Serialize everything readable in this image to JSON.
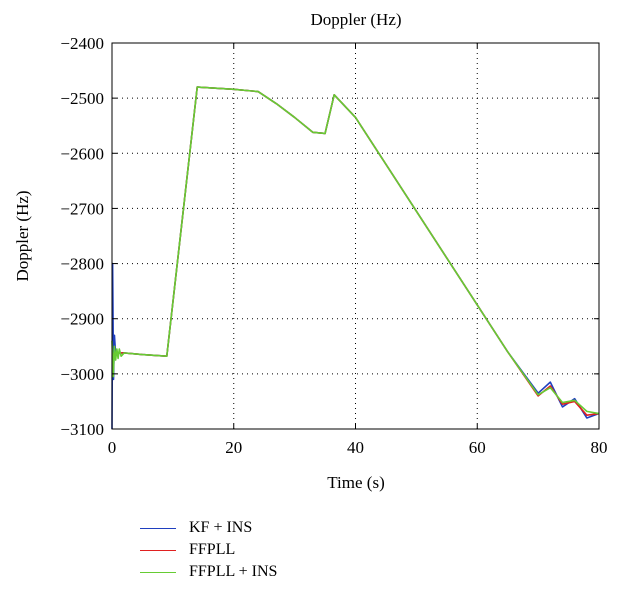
{
  "chart_data": {
    "type": "line",
    "title": "Doppler (Hz)",
    "xlabel": "Time (s)",
    "ylabel": "Doppler (Hz)",
    "xlim": [
      0,
      80
    ],
    "ylim": [
      -3100,
      -2400
    ],
    "xticks": [
      0,
      20,
      40,
      60,
      80
    ],
    "yticks": [
      -2400,
      -2500,
      -2600,
      -2700,
      -2800,
      -2900,
      -3000,
      -3100
    ],
    "xtick_labels": [
      "0",
      "20",
      "40",
      "60",
      "80"
    ],
    "ytick_labels": [
      "−2400",
      "−2500",
      "−2600",
      "−2700",
      "−2800",
      "−2900",
      "−3000",
      "−3100"
    ],
    "grid": true,
    "legend_position": "bottom",
    "series": [
      {
        "name": "KF + INS",
        "color": "#1f3fbf",
        "x": [
          0,
          0.1,
          0.25,
          0.4,
          0.6,
          1,
          2,
          5,
          9,
          14,
          20,
          24,
          27,
          30,
          33,
          35,
          36.5,
          40,
          45,
          50,
          55,
          60,
          65,
          70,
          72,
          74,
          76,
          78,
          80
        ],
        "y": [
          -3100,
          -2800,
          -3010,
          -2930,
          -2965,
          -2962,
          -2962,
          -2965,
          -2968,
          -2480,
          -2484,
          -2488,
          -2510,
          -2535,
          -2562,
          -2564,
          -2494,
          -2535,
          -2620,
          -2705,
          -2790,
          -2875,
          -2960,
          -3035,
          -3015,
          -3060,
          -3045,
          -3080,
          -3072
        ]
      },
      {
        "name": "FFPLL",
        "color": "#e02020",
        "x": [
          0,
          0.5,
          1,
          2,
          5,
          9,
          14,
          20,
          24,
          27,
          30,
          33,
          35,
          36.5,
          40,
          45,
          50,
          55,
          60,
          65,
          70,
          72,
          74,
          76,
          78,
          80
        ],
        "y": [
          -2965,
          -2962,
          -2962,
          -2962,
          -2965,
          -2968,
          -2480,
          -2484,
          -2488,
          -2510,
          -2535,
          -2562,
          -2564,
          -2494,
          -2535,
          -2620,
          -2705,
          -2790,
          -2875,
          -2960,
          -3040,
          -3022,
          -3055,
          -3050,
          -3075,
          -3072
        ]
      },
      {
        "name": "FFPLL + INS",
        "color": "#66cc33",
        "x": [
          0,
          0.2,
          0.4,
          0.6,
          0.8,
          1,
          1.2,
          1.5,
          2,
          5,
          9,
          14,
          20,
          24,
          27,
          30,
          33,
          35,
          36.5,
          40,
          45,
          50,
          55,
          60,
          65,
          70,
          72,
          74,
          76,
          78,
          80
        ],
        "y": [
          -2940,
          -3005,
          -2950,
          -2975,
          -2955,
          -2972,
          -2955,
          -2968,
          -2962,
          -2965,
          -2968,
          -2480,
          -2484,
          -2488,
          -2510,
          -2535,
          -2562,
          -2564,
          -2494,
          -2535,
          -2620,
          -2705,
          -2790,
          -2875,
          -2960,
          -3038,
          -3025,
          -3052,
          -3048,
          -3068,
          -3072
        ]
      }
    ]
  }
}
